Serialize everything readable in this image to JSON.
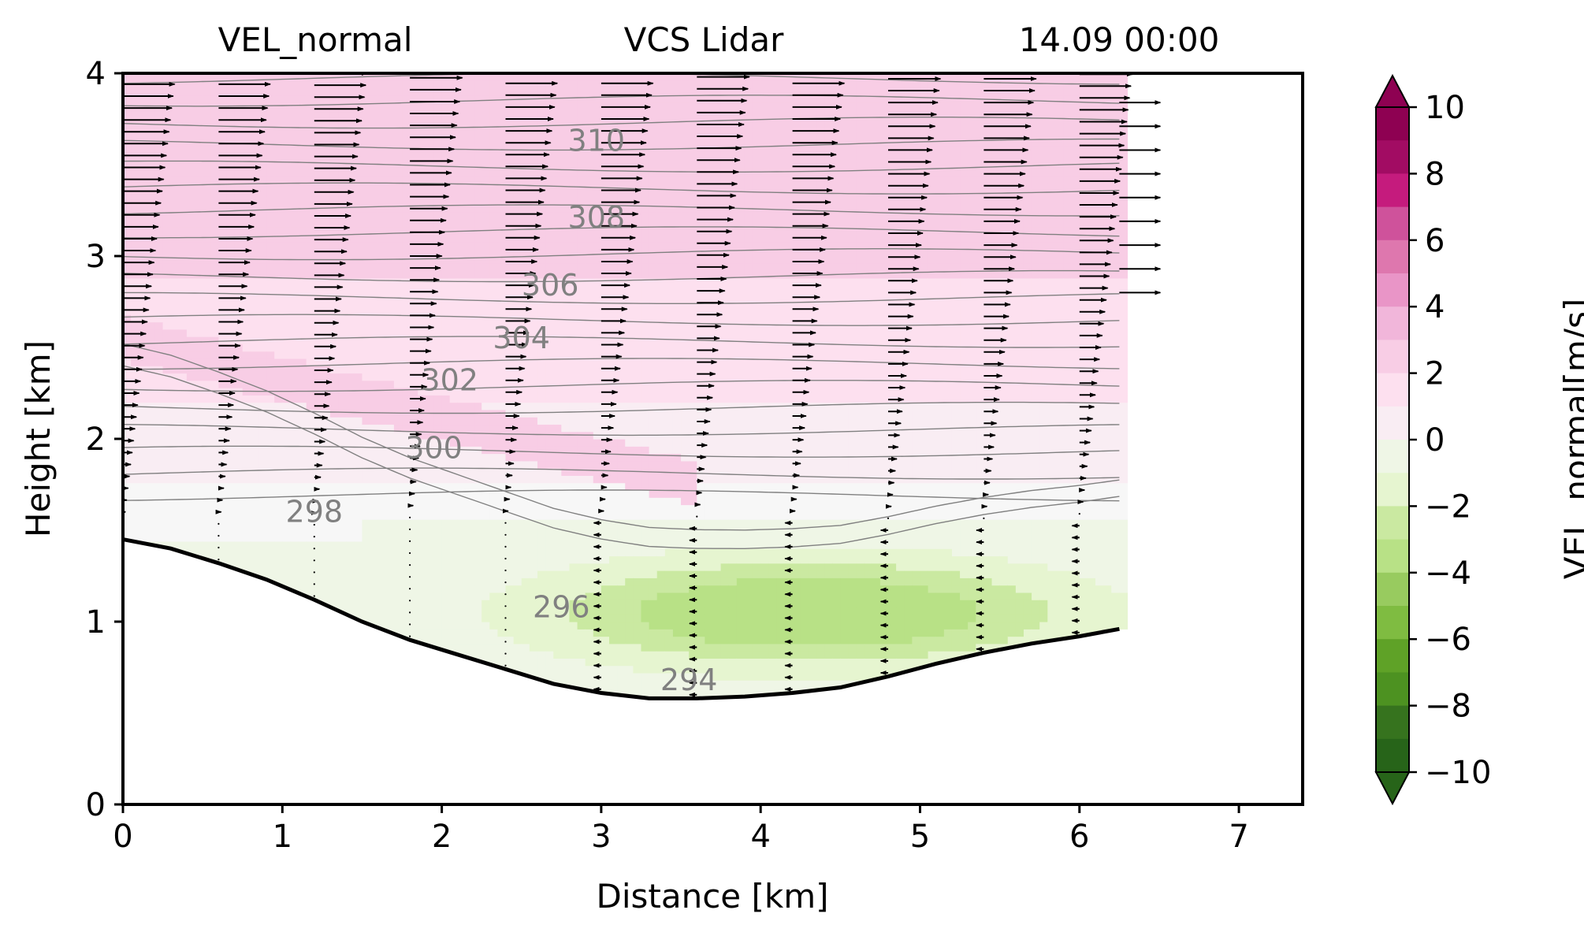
{
  "header": {
    "left": "VEL_normal",
    "center": "VCS Lidar",
    "right": "14.09 00:00"
  },
  "chart_data": {
    "type": "heatmap",
    "title": "",
    "xlabel": "Distance [km]",
    "ylabel": "Height [km]",
    "xlim": [
      0,
      7.4
    ],
    "ylim": [
      0,
      4
    ],
    "xticks": [
      "0",
      "1",
      "2",
      "3",
      "4",
      "5",
      "6",
      "7"
    ],
    "yticks": [
      "0",
      "1",
      "2",
      "3",
      "4"
    ],
    "grid": false,
    "colorbar": {
      "label": "VEL_normal[m/s]",
      "range": [
        -10,
        10
      ],
      "step": 1,
      "ticks": [
        "10",
        "8",
        "6",
        "4",
        "2",
        "0",
        "−2",
        "−4",
        "−6",
        "−8",
        "−10"
      ],
      "extend": "both",
      "colormap": "PiYG_r",
      "colors": {
        "-10": "#276419",
        "-9": "#36731e",
        "-8": "#4d9221",
        "-7": "#5fa227",
        "-6": "#7fbc41",
        "-5": "#98cb5f",
        "-4": "#b8e186",
        "-3": "#cae9a1",
        "-2": "#e6f5d0",
        "-1": "#eff6e6",
        "0": "#f7f7f7",
        "1": "#f9edf3",
        "2": "#fde0ef",
        "3": "#f8cde5",
        "4": "#f1b6da",
        "5": "#e995c7",
        "6": "#de77ae",
        "7": "#cf529b",
        "8": "#c51b7d",
        "9": "#a20c63",
        "10": "#8e0152"
      }
    },
    "background_field": {
      "description_units": "m/s",
      "x_range_km": [
        0,
        6.25
      ],
      "layers": [
        {
          "region": "upper",
          "height_km": [
            2.9,
            4.0
          ],
          "value": 3
        },
        {
          "region": "middle",
          "height_km": [
            2.0,
            2.9
          ],
          "value": 2
        },
        {
          "region": "lower-mid",
          "height_km": [
            1.6,
            2.0
          ],
          "value": 1
        },
        {
          "region": "near-surface",
          "height_km": [
            0.6,
            1.6
          ],
          "value": -2
        },
        {
          "region": "core",
          "center_km": [
            4.3,
            1.05
          ],
          "value": -4
        }
      ]
    },
    "terrain": {
      "x": [
        0,
        0.3,
        0.6,
        0.9,
        1.2,
        1.5,
        1.8,
        2.1,
        2.4,
        2.7,
        3.0,
        3.3,
        3.6,
        3.9,
        4.2,
        4.5,
        4.8,
        5.1,
        5.4,
        5.7,
        6.0,
        6.25
      ],
      "y": [
        1.45,
        1.4,
        1.32,
        1.23,
        1.12,
        1.0,
        0.9,
        0.82,
        0.74,
        0.66,
        0.61,
        0.58,
        0.58,
        0.59,
        0.61,
        0.64,
        0.7,
        0.77,
        0.83,
        0.88,
        0.92,
        0.96
      ]
    },
    "theta_contours": [
      {
        "level": 294,
        "label": "294",
        "label_pos": [
          3.55,
          0.67
        ]
      },
      {
        "level": 296,
        "label": "296",
        "label_pos": [
          2.75,
          1.07
        ]
      },
      {
        "level": 298,
        "label": "298",
        "label_pos": [
          1.2,
          1.59
        ]
      },
      {
        "level": 300,
        "label": "300",
        "label_pos": [
          1.95,
          1.94
        ]
      },
      {
        "level": 302,
        "label": "302",
        "label_pos": [
          2.05,
          2.31
        ]
      },
      {
        "level": 304,
        "label": "304",
        "label_pos": [
          2.5,
          2.54
        ]
      },
      {
        "level": 306,
        "label": "306",
        "label_pos": [
          2.68,
          2.83
        ]
      },
      {
        "level": 308,
        "label": "308",
        "label_pos": [
          2.97,
          3.2
        ]
      },
      {
        "level": 310,
        "label": "310",
        "label_pos": [
          2.97,
          3.62
        ]
      }
    ],
    "wind_profiles": {
      "x_km": [
        0,
        0.6,
        1.2,
        1.8,
        2.4,
        3.0,
        3.6,
        4.2,
        4.8,
        5.4,
        6.0
      ],
      "note": "horizontal arrows, normal component; arrows point right aloft, short/left near surface"
    }
  }
}
